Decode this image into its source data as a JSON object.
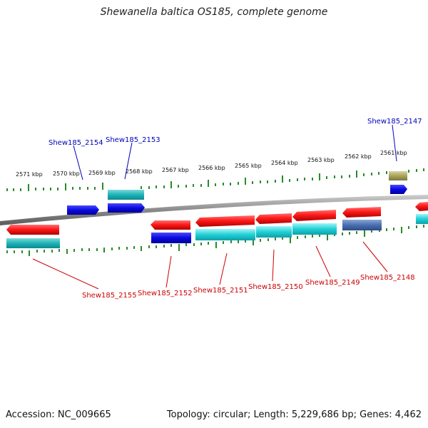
{
  "title": "Shewanella baltica OS185, complete genome",
  "footer": {
    "accession": "Accession: NC_009665",
    "stats": "Topology: circular; Length: 5,229,686 bp; Genes: 4,462"
  },
  "colors": {
    "backbone": "#8a8a8a",
    "tick": "#2a8a2a",
    "cds_forward": "#1010dd",
    "cds_reverse": "#ee1010",
    "rna": "#17c9cf",
    "label_top": "#0000bb",
    "label_bottom": "#cc0000"
  },
  "ruler": [
    {
      "label": "2571 kbp",
      "pos": 2571
    },
    {
      "label": "2570 kbp",
      "pos": 2570
    },
    {
      "label": "2569 kbp",
      "pos": 2569
    },
    {
      "label": "2568 kbp",
      "pos": 2568
    },
    {
      "label": "2567 kbp",
      "pos": 2567
    },
    {
      "label": "2566 kbp",
      "pos": 2566
    },
    {
      "label": "2565 kbp",
      "pos": 2565
    },
    {
      "label": "2564 kbp",
      "pos": 2564
    },
    {
      "label": "2563 kbp",
      "pos": 2563
    },
    {
      "label": "2562 kbp",
      "pos": 2562
    },
    {
      "label": "2561 kbp",
      "pos": 2561
    }
  ],
  "genes": [
    {
      "label": "Shew185_2154",
      "side": "top"
    },
    {
      "label": "Shew185_2153",
      "side": "top"
    },
    {
      "label": "Shew185_2147",
      "side": "top"
    },
    {
      "label": "Shew185_2155",
      "side": "bottom"
    },
    {
      "label": "Shew185_2152",
      "side": "bottom"
    },
    {
      "label": "Shew185_2151",
      "side": "bottom"
    },
    {
      "label": "Shew185_2150",
      "side": "bottom"
    },
    {
      "label": "Shew185_2149",
      "side": "bottom"
    },
    {
      "label": "Shew185_2148",
      "side": "bottom"
    }
  ]
}
